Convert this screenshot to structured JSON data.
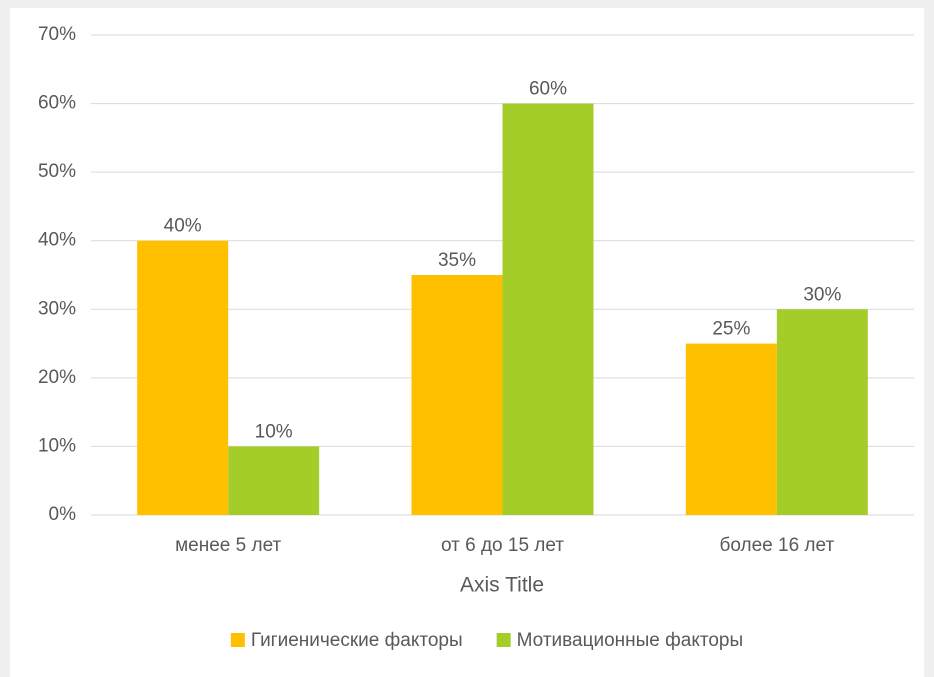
{
  "chart_data": {
    "type": "bar",
    "xlabel": "Axis Title",
    "categories": [
      "менее 5 лет",
      "от 6 до 15 лет",
      "более 16 лет"
    ],
    "series": [
      {
        "name": "Гигиенические факторы",
        "color": "#FFC000",
        "values": [
          40,
          35,
          25
        ],
        "value_labels": [
          "40%",
          "35%",
          "25%"
        ]
      },
      {
        "name": "Мотивационные факторы",
        "color": "#A5CD2A",
        "values": [
          10,
          60,
          30
        ],
        "value_labels": [
          "10%",
          "60%",
          "30%"
        ]
      }
    ],
    "ylim": [
      0,
      70
    ],
    "yticks": [
      {
        "value": 0,
        "label": "0%"
      },
      {
        "value": 10,
        "label": "10%"
      },
      {
        "value": 20,
        "label": "20%"
      },
      {
        "value": 30,
        "label": "30%"
      },
      {
        "value": 40,
        "label": "40%"
      },
      {
        "value": 50,
        "label": "50%"
      },
      {
        "value": 60,
        "label": "60%"
      },
      {
        "value": 70,
        "label": "70%"
      }
    ],
    "grid": true,
    "legend": "bottom"
  }
}
